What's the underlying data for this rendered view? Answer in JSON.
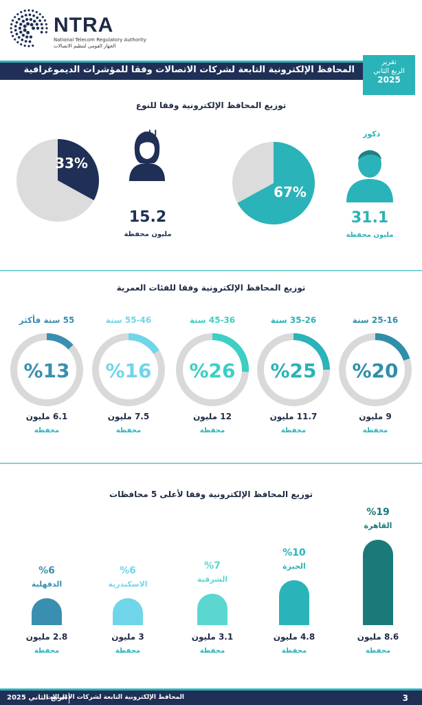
{
  "logo": {
    "name": "NTRA",
    "subtitle_en": "National Telecom Regulatory Authority",
    "subtitle_ar": "الجهاز القومي لتنظيم الاتصالات"
  },
  "header": {
    "title": "المحافظ الإلكترونية التابعة لشركات الاتصالات وفقا للمؤشرات الديموغرافية",
    "report_line1": "تقرير",
    "report_line2": "الربع الثاني",
    "report_year": "2025"
  },
  "colors": {
    "navy": "#1f2f55",
    "teal": "#2ab3b8",
    "light_gray": "#dcdcdc"
  },
  "chart_data": [
    {
      "type": "pie",
      "title": "توزيع المحافظ الإلكترونية وفقا للنوع",
      "categories": [
        "ذكور",
        "إناث"
      ],
      "series": [
        {
          "name": "ذكور",
          "percent_label": "67%",
          "percent": 67,
          "value": "31.1",
          "unit": "مليون محفظة",
          "color": "#2ab3b8",
          "icon": "male-user-icon"
        },
        {
          "name": "إناث",
          "percent_label": "33%",
          "percent": 33,
          "value": "15.2",
          "unit": "مليون محفظة",
          "color": "#1f2f55",
          "icon": "female-user-icon"
        }
      ]
    },
    {
      "type": "pie",
      "title": "توزيع المحافظ الإلكترونية وفقا للفئات العمرية",
      "categories": [
        "25-16 سنة",
        "35-26 سنة",
        "45-36 سنة",
        "55-46 سنة",
        "55 سنة فأكثر"
      ],
      "series": [
        {
          "name": "25-16 سنة",
          "percent": 20,
          "percent_label": "%20",
          "value": "9 مليون",
          "unit": "محفظة",
          "color": "#2f8fa8"
        },
        {
          "name": "35-26 سنة",
          "percent": 25,
          "percent_label": "%25",
          "value": "11.7 مليون",
          "unit": "محفظة",
          "color": "#2ab3b8"
        },
        {
          "name": "45-36 سنة",
          "percent": 26,
          "percent_label": "%26",
          "value": "12 مليون",
          "unit": "محفظة",
          "color": "#3ccfc4"
        },
        {
          "name": "55-46 سنة",
          "percent": 16,
          "percent_label": "%16",
          "value": "7.5 مليون",
          "unit": "محفظة",
          "color": "#6fd6ea"
        },
        {
          "name": "55 سنة فأكثر",
          "percent": 13,
          "percent_label": "%13",
          "value": "6.1 مليون",
          "unit": "محفظة",
          "color": "#3a8fb0"
        }
      ]
    },
    {
      "type": "bar",
      "title": "توزيع المحافظ الإلكترونية وفقا لأعلى 5 محافظات",
      "categories": [
        "القاهرة",
        "الجيزة",
        "الشرقية",
        "الاسكندرية",
        "الدقهلية"
      ],
      "series": [
        {
          "name": "القاهرة",
          "percent": 19,
          "percent_label": "%19",
          "value": "8.6 مليون",
          "unit": "محفظة",
          "color": "#1a7a7a"
        },
        {
          "name": "الجيزة",
          "percent": 10,
          "percent_label": "%10",
          "value": "4.8 مليون",
          "unit": "محفظة",
          "color": "#2ab3b8"
        },
        {
          "name": "الشرقية",
          "percent": 7,
          "percent_label": "%7",
          "value": "3.1 مليون",
          "unit": "محفظة",
          "color": "#5cd6d0"
        },
        {
          "name": "الاسكندرية",
          "percent": 6,
          "percent_label": "%6",
          "value": "3 مليون",
          "unit": "محفظة",
          "color": "#6fd6ea"
        },
        {
          "name": "الدقهلية",
          "percent": 6,
          "percent_label": "%6",
          "value": "2.8 مليون",
          "unit": "محفظة",
          "color": "#3a8fb0"
        }
      ]
    }
  ],
  "footer": {
    "period": "الربع الثاني 2025",
    "title": "المحافظ الإلكترونية التابعة لشركات الاتصالات",
    "page": "3"
  }
}
